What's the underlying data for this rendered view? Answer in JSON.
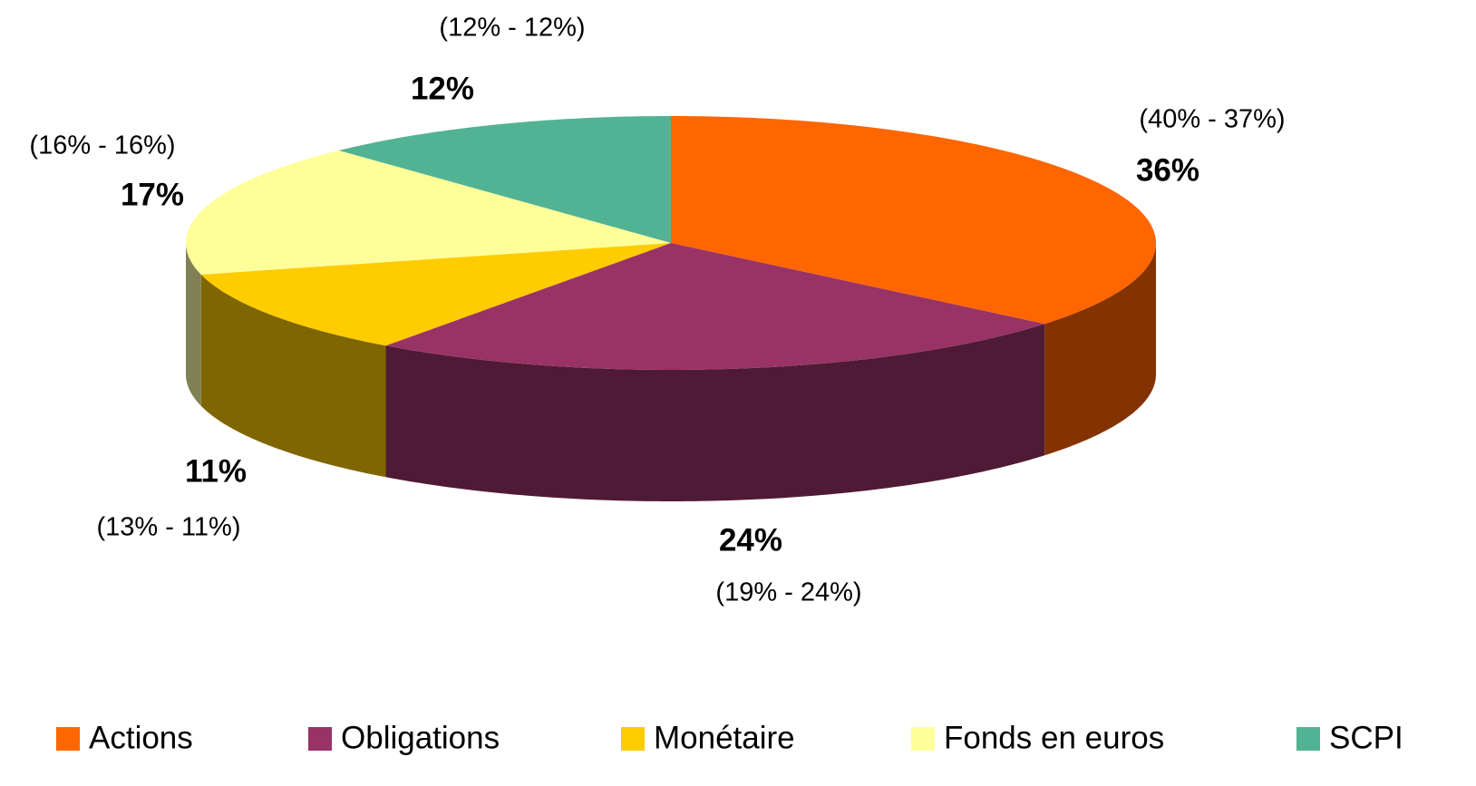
{
  "chart_data": {
    "type": "pie",
    "categories": [
      "Actions",
      "Obligations",
      "Monétaire",
      "Fonds en euros",
      "SCPI"
    ],
    "values": [
      36,
      24,
      11,
      17,
      12
    ],
    "value_labels": [
      "36%",
      "24%",
      "11%",
      "17%",
      "12%"
    ],
    "range_labels": [
      "(40% - 37%)",
      "(19% - 24%)",
      "(13% - 11%)",
      "(16% - 16%)",
      "(12% - 12%)"
    ],
    "colors": [
      "#ff6600",
      "#993366",
      "#ffcc00",
      "#ffff99",
      "#52b394"
    ],
    "side_colors": [
      "#843200",
      "#4f1a35",
      "#806600",
      "#808055",
      "#2a5c4c"
    ]
  }
}
